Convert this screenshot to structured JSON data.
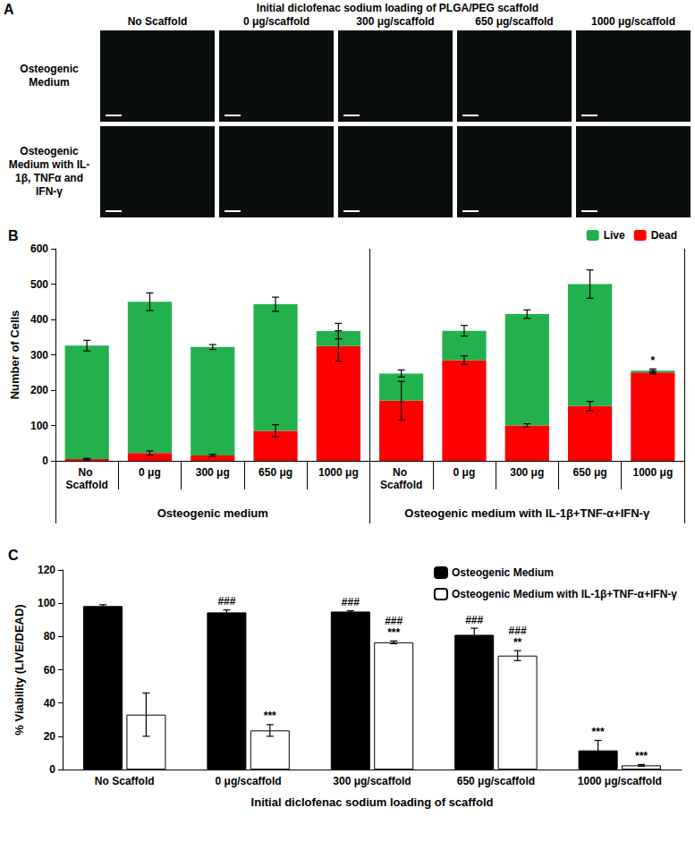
{
  "panel_a": {
    "label": "A",
    "title": "Initial diclofenac sodium loading of PLGA/PEG scaffold",
    "columns": [
      "No Scaffold",
      "0 μg/scaffold",
      "300 μg/scaffold",
      "650 μg/scaffold",
      "1000 μg/scaffold"
    ],
    "rows": [
      "Osteogenic Medium",
      "Osteogenic Medium with IL-1β, TNFα and IFN-γ"
    ]
  },
  "chart_data": [
    {
      "panel": "B",
      "type": "bar",
      "stacked": true,
      "grid": false,
      "legend": "top right",
      "categories": [
        "No Scaffold",
        "0 μg",
        "300 μg",
        "650 μg",
        "1000 μg",
        "No Scaffold",
        "0 μg",
        "300 μg",
        "650 μg",
        "1000 μg"
      ],
      "group_labels": [
        "Osteogenic medium",
        "Osteogenic medium with IL-1β+TNF-α+IFN-γ"
      ],
      "y_label": "Number of Cells",
      "ylim": [
        0,
        600
      ],
      "yticks": [
        0,
        100,
        200,
        300,
        400,
        500,
        600
      ],
      "series": [
        {
          "name": "Live",
          "color": "#22b14c",
          "values": [
            321,
            428,
            307,
            358,
            42,
            77,
            83,
            315,
            345,
            5
          ],
          "errors": [
            15,
            25,
            7,
            20,
            22,
            10,
            15,
            12,
            40,
            5
          ]
        },
        {
          "name": "Dead",
          "color": "#ff0000",
          "values": [
            5,
            22,
            15,
            85,
            325,
            170,
            285,
            100,
            155,
            250
          ],
          "errors": [
            2,
            6,
            3,
            17,
            43,
            55,
            12,
            5,
            13,
            5
          ]
        }
      ],
      "significance": [
        null,
        null,
        null,
        null,
        null,
        null,
        null,
        null,
        null,
        "*"
      ]
    },
    {
      "panel": "C",
      "type": "bar",
      "stacked": false,
      "grid": false,
      "legend": "top right",
      "categories": [
        "No Scaffold",
        "0 μg/scaffold",
        "300 μg/scaffold",
        "650 μg/scaffold",
        "1000 μg/scaffold"
      ],
      "x_label": "Initial diclofenac sodium loading of scaffold",
      "y_label": "% Viability (LIVE/DEAD)",
      "ylim": [
        0,
        120
      ],
      "yticks": [
        0,
        20,
        40,
        60,
        80,
        100,
        120
      ],
      "series": [
        {
          "name": "Osteogenic Medium",
          "color": "#000000",
          "values": [
            98.3,
            94.5,
            95,
            81,
            11.5
          ],
          "errors": [
            0.8,
            1.5,
            0.5,
            4,
            6
          ],
          "significance": [
            null,
            [
              "###"
            ],
            [
              "###"
            ],
            [
              "###"
            ],
            [
              "***"
            ]
          ]
        },
        {
          "name": "Osteogenic Medium with IL-1β+TNF-α+IFN-γ",
          "color": "#ffffff",
          "values": [
            33,
            23.5,
            76.5,
            68.5,
            2.5
          ],
          "errors": [
            13,
            3.5,
            0.8,
            3,
            0.5
          ],
          "significance": [
            null,
            [
              "***"
            ],
            [
              "###",
              "***"
            ],
            [
              "###",
              "**"
            ],
            [
              "***"
            ]
          ]
        }
      ]
    }
  ]
}
